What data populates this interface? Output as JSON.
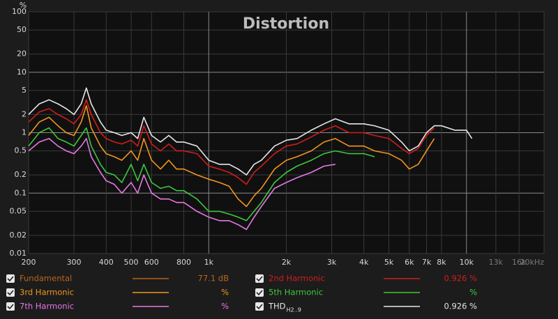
{
  "chart_data": {
    "type": "line",
    "title": "Distortion",
    "y_label": "%",
    "xscale": "log",
    "yscale": "log",
    "grid": true,
    "xlim": [
      200,
      20000
    ],
    "ylim": [
      0.01,
      100
    ],
    "xticks": [
      200,
      300,
      400,
      500,
      600,
      800,
      {
        "value": 1000,
        "label": "1k"
      },
      {
        "value": 2000,
        "label": "2k"
      },
      {
        "value": 3000,
        "label": "3k"
      },
      {
        "value": 4000,
        "label": "4k"
      },
      {
        "value": 5000,
        "label": "5k"
      },
      {
        "value": 6000,
        "label": "6k"
      },
      {
        "value": 7000,
        "label": "7k"
      },
      {
        "value": 8000,
        "label": "8k"
      },
      {
        "value": 10000,
        "label": "10k"
      },
      {
        "value": 13000,
        "label": "13k"
      },
      {
        "value": 16000,
        "label": "16k"
      },
      {
        "value": 20000,
        "label": "20kHz"
      }
    ],
    "yticks": [
      100,
      50,
      20,
      10,
      5,
      2,
      1,
      0.5,
      0.2,
      0.1,
      0.05,
      0.02,
      0.01
    ],
    "x": [
      200,
      220,
      240,
      260,
      280,
      300,
      320,
      335,
      350,
      380,
      400,
      430,
      460,
      500,
      530,
      560,
      600,
      650,
      700,
      750,
      800,
      900,
      1000,
      1100,
      1200,
      1300,
      1400,
      1500,
      1600,
      1800,
      2000,
      2200,
      2500,
      2800,
      3100,
      3500,
      4000,
      4400,
      5000,
      5600,
      6000,
      6500,
      7000,
      7500,
      8000,
      9000,
      10000,
      10500
    ],
    "series": [
      {
        "name": "Fundamental",
        "color": "#b8651c",
        "readout": "77.1 dB"
      },
      {
        "name": "2nd Harmonic",
        "color": "#d21c1c",
        "readout": "0.926 %",
        "values": [
          1.5,
          2.2,
          2.5,
          2,
          1.7,
          1.4,
          2,
          3.5,
          2,
          1,
          0.8,
          0.7,
          0.65,
          0.75,
          0.6,
          1.3,
          0.65,
          0.5,
          0.65,
          0.5,
          0.5,
          0.45,
          0.28,
          0.25,
          0.22,
          0.18,
          0.14,
          0.22,
          0.28,
          0.45,
          0.6,
          0.65,
          0.85,
          1.1,
          1.3,
          1,
          1,
          0.9,
          0.8,
          0.55,
          0.45,
          0.55,
          0.9,
          1.2,
          null,
          null,
          null,
          null
        ]
      },
      {
        "name": "3rd Harmonic",
        "color": "#f0961e",
        "readout": "%",
        "values": [
          0.9,
          1.5,
          1.8,
          1.3,
          1,
          0.9,
          1.5,
          2.8,
          1.2,
          0.6,
          0.45,
          0.4,
          0.35,
          0.5,
          0.35,
          0.8,
          0.35,
          0.25,
          0.35,
          0.25,
          0.25,
          0.2,
          0.17,
          0.15,
          0.13,
          0.08,
          0.06,
          0.09,
          0.12,
          0.25,
          0.35,
          0.4,
          0.5,
          0.7,
          0.8,
          0.6,
          0.6,
          0.5,
          0.45,
          0.35,
          0.25,
          0.3,
          0.5,
          0.8,
          null,
          null,
          null,
          null
        ]
      },
      {
        "name": "5th Harmonic",
        "color": "#3cc83c",
        "readout": "%",
        "values": [
          0.6,
          1,
          1.2,
          0.8,
          0.7,
          0.6,
          0.9,
          1.2,
          0.6,
          0.3,
          0.22,
          0.2,
          0.15,
          0.3,
          0.16,
          0.3,
          0.15,
          0.12,
          0.13,
          0.11,
          0.11,
          0.08,
          0.05,
          0.05,
          0.045,
          0.04,
          0.035,
          0.05,
          0.07,
          0.15,
          0.22,
          0.28,
          0.35,
          0.45,
          0.5,
          0.45,
          0.45,
          0.4,
          null,
          null,
          null,
          null,
          null,
          null,
          null,
          null,
          null,
          null
        ]
      },
      {
        "name": "7th Harmonic",
        "color": "#e678e6",
        "readout": "%",
        "values": [
          0.5,
          0.7,
          0.8,
          0.6,
          0.5,
          0.45,
          0.6,
          0.8,
          0.4,
          0.22,
          0.16,
          0.14,
          0.1,
          0.15,
          0.1,
          0.2,
          0.1,
          0.08,
          0.08,
          0.07,
          0.07,
          0.05,
          0.04,
          0.035,
          0.035,
          0.03,
          0.025,
          0.04,
          0.06,
          0.12,
          0.15,
          0.18,
          0.22,
          0.28,
          0.3,
          null,
          null,
          null,
          null,
          null,
          null,
          null,
          null,
          null,
          null,
          null,
          null,
          null
        ]
      },
      {
        "name": "THD",
        "name_subscript": "H2..9",
        "color": "#e6e6e6",
        "readout": "0.926 %",
        "values": [
          2,
          3,
          3.5,
          3,
          2.5,
          2,
          3,
          5.5,
          3,
          1.5,
          1.1,
          1,
          0.9,
          1,
          0.8,
          1.8,
          0.9,
          0.7,
          0.9,
          0.7,
          0.7,
          0.6,
          0.35,
          0.3,
          0.3,
          0.25,
          0.2,
          0.3,
          0.35,
          0.6,
          0.75,
          0.8,
          1.1,
          1.4,
          1.7,
          1.4,
          1.4,
          1.3,
          1.1,
          0.7,
          0.5,
          0.6,
          1,
          1.3,
          1.3,
          1.1,
          1.1,
          0.8
        ]
      }
    ]
  }
}
